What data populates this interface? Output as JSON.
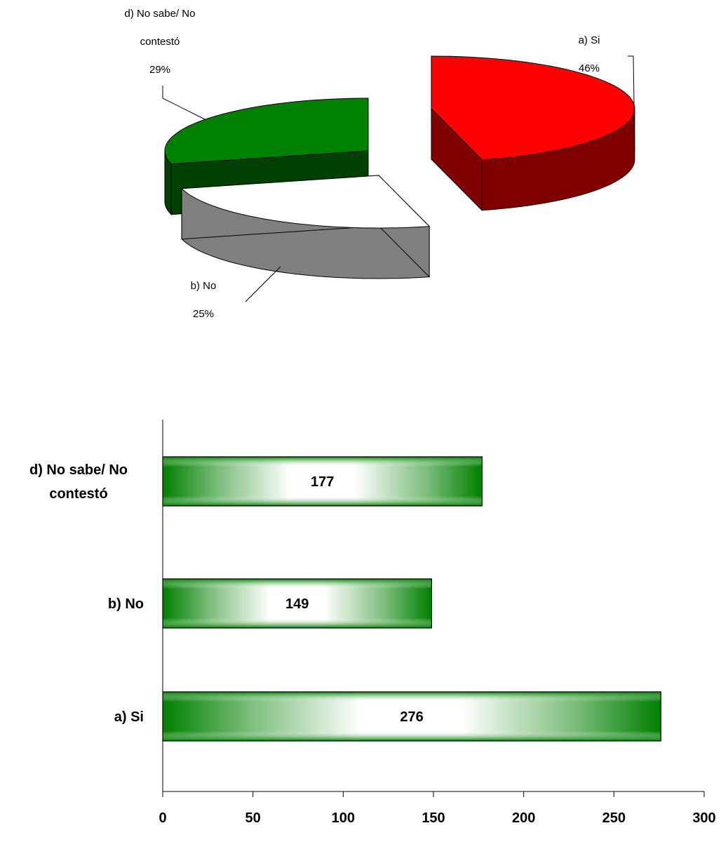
{
  "chart_data": [
    {
      "type": "pie",
      "title": "",
      "slices": [
        {
          "label_lines": [
            "a) Si"
          ],
          "percent_label": "46%",
          "value": 46,
          "color_top": "#ff0000",
          "color_side": "#800000"
        },
        {
          "label_lines": [
            "b) No"
          ],
          "percent_label": "25%",
          "value": 25,
          "color_top": "#ffffff",
          "color_side": "#808080"
        },
        {
          "label_lines": [
            "d) No sabe/ No",
            "contestó"
          ],
          "percent_label": "29%",
          "value": 29,
          "color_top": "#008000",
          "color_side": "#004000"
        }
      ]
    },
    {
      "type": "bar",
      "orientation": "horizontal",
      "title": "",
      "xlabel": "",
      "ylabel": "",
      "categories": [
        {
          "lines": [
            "d) No sabe/ No",
            "contestó"
          ]
        },
        {
          "lines": [
            "b) No"
          ]
        },
        {
          "lines": [
            "a) Si"
          ]
        }
      ],
      "values": [
        177,
        149,
        276
      ],
      "xlim": [
        0,
        300
      ],
      "xticks": [
        0,
        50,
        100,
        150,
        200,
        250,
        300
      ],
      "bar_color": "#008000",
      "grid": false
    }
  ]
}
